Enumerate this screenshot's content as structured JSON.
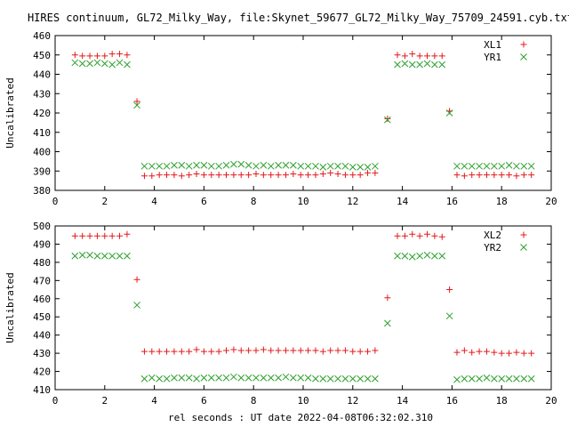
{
  "title": "HIRES continuum, GL72_Milky_Way, file:Skynet_59677_GL72_Milky_Way_75709_24591.cyb.txt",
  "xlabel": "rel seconds : UT date 2022-04-08T06:32:02.310",
  "colors": {
    "red": "#e41a1c",
    "green": "#2ca02c"
  },
  "chart_data": [
    {
      "type": "scatter",
      "ylabel": "Uncalibrated",
      "xlim": [
        0,
        20
      ],
      "ylim": [
        380,
        460
      ],
      "xticks": [
        0,
        2,
        4,
        6,
        8,
        10,
        12,
        14,
        16,
        18,
        20
      ],
      "yticks": [
        380,
        390,
        400,
        410,
        420,
        430,
        440,
        450,
        460
      ],
      "legend": "top-right",
      "series": [
        {
          "name": "XL1",
          "marker": "plus",
          "color": "#e41a1c",
          "x": [
            0.8,
            1.1,
            1.4,
            1.7,
            2.0,
            2.3,
            2.6,
            2.9,
            3.3,
            3.6,
            3.9,
            4.2,
            4.5,
            4.8,
            5.1,
            5.4,
            5.7,
            6.0,
            6.3,
            6.6,
            6.9,
            7.2,
            7.5,
            7.8,
            8.1,
            8.4,
            8.7,
            9.0,
            9.3,
            9.6,
            9.9,
            10.2,
            10.5,
            10.8,
            11.1,
            11.4,
            11.7,
            12.0,
            12.3,
            12.6,
            12.9,
            13.4,
            13.8,
            14.1,
            14.4,
            14.7,
            15.0,
            15.3,
            15.6,
            15.9,
            16.2,
            16.5,
            16.8,
            17.1,
            17.4,
            17.7,
            18.0,
            18.3,
            18.6,
            18.9,
            19.2
          ],
          "y": [
            450,
            449.5,
            449.5,
            449.5,
            449.5,
            450.5,
            450.5,
            450,
            426,
            387.5,
            387.5,
            388,
            388,
            388,
            387.5,
            388,
            388.5,
            388,
            388,
            388,
            388,
            388,
            388,
            388,
            388.5,
            388,
            388,
            388,
            388,
            388.5,
            388,
            388,
            388,
            388.5,
            389,
            388.5,
            388,
            388,
            388,
            389,
            389,
            417,
            450,
            449.5,
            450.5,
            449.5,
            449.5,
            449.5,
            449.5,
            421,
            388,
            387.5,
            388,
            388,
            388,
            388,
            388,
            388,
            387.5,
            388,
            388
          ]
        },
        {
          "name": "YR1",
          "marker": "cross",
          "color": "#2ca02c",
          "x": [
            0.8,
            1.1,
            1.4,
            1.7,
            2.0,
            2.3,
            2.6,
            2.9,
            3.3,
            3.6,
            3.9,
            4.2,
            4.5,
            4.8,
            5.1,
            5.4,
            5.7,
            6.0,
            6.3,
            6.6,
            6.9,
            7.2,
            7.5,
            7.8,
            8.1,
            8.4,
            8.7,
            9.0,
            9.3,
            9.6,
            9.9,
            10.2,
            10.5,
            10.8,
            11.1,
            11.4,
            11.7,
            12.0,
            12.3,
            12.6,
            12.9,
            13.4,
            13.8,
            14.1,
            14.4,
            14.7,
            15.0,
            15.3,
            15.6,
            15.9,
            16.2,
            16.5,
            16.8,
            17.1,
            17.4,
            17.7,
            18.0,
            18.3,
            18.6,
            18.9,
            19.2
          ],
          "y": [
            446,
            445.5,
            445.5,
            446,
            445.5,
            445,
            446,
            445,
            424,
            392.5,
            392.5,
            392.5,
            392.5,
            393,
            393,
            392.5,
            393,
            393,
            392.5,
            392.5,
            393,
            393.5,
            393.5,
            393,
            392.5,
            393,
            392.5,
            393,
            393,
            393,
            392.5,
            392.5,
            392.5,
            392,
            392.5,
            392.5,
            392.5,
            392,
            392,
            392,
            392.5,
            416.5,
            445,
            445.5,
            445,
            445,
            445.5,
            445,
            445,
            420,
            392.5,
            392.5,
            392.5,
            392.5,
            392.5,
            392.5,
            392.5,
            393,
            392.5,
            392.5,
            392.5
          ]
        }
      ]
    },
    {
      "type": "scatter",
      "ylabel": "Uncalibrated",
      "xlim": [
        0,
        20
      ],
      "ylim": [
        410,
        500
      ],
      "xticks": [
        0,
        2,
        4,
        6,
        8,
        10,
        12,
        14,
        16,
        18,
        20
      ],
      "yticks": [
        410,
        420,
        430,
        440,
        450,
        460,
        470,
        480,
        490,
        500
      ],
      "legend": "top-right",
      "series": [
        {
          "name": "XL2",
          "marker": "plus",
          "color": "#e41a1c",
          "x": [
            0.8,
            1.1,
            1.4,
            1.7,
            2.0,
            2.3,
            2.6,
            2.9,
            3.3,
            3.6,
            3.9,
            4.2,
            4.5,
            4.8,
            5.1,
            5.4,
            5.7,
            6.0,
            6.3,
            6.6,
            6.9,
            7.2,
            7.5,
            7.8,
            8.1,
            8.4,
            8.7,
            9.0,
            9.3,
            9.6,
            9.9,
            10.2,
            10.5,
            10.8,
            11.1,
            11.4,
            11.7,
            12.0,
            12.3,
            12.6,
            12.9,
            13.4,
            13.8,
            14.1,
            14.4,
            14.7,
            15.0,
            15.3,
            15.6,
            15.9,
            16.2,
            16.5,
            16.8,
            17.1,
            17.4,
            17.7,
            18.0,
            18.3,
            18.6,
            18.9,
            19.2
          ],
          "y": [
            494.5,
            494.5,
            494.5,
            494.5,
            494.5,
            494.5,
            494.5,
            495.5,
            470.5,
            431,
            431,
            431,
            431,
            431,
            431,
            431,
            432,
            431,
            431,
            431,
            431.5,
            432,
            431.5,
            431.5,
            431.5,
            432,
            431.5,
            431.5,
            431.5,
            431.5,
            431.5,
            431.5,
            431.5,
            431,
            431.5,
            431.5,
            431.5,
            431,
            431,
            431,
            431.5,
            460.5,
            494.5,
            494.5,
            495.5,
            494.5,
            495.5,
            494.5,
            494,
            465,
            430.5,
            431.5,
            430.5,
            431,
            431,
            430.5,
            430,
            430,
            430.5,
            430,
            430
          ]
        },
        {
          "name": "YR2",
          "marker": "cross",
          "color": "#2ca02c",
          "x": [
            0.8,
            1.1,
            1.4,
            1.7,
            2.0,
            2.3,
            2.6,
            2.9,
            3.3,
            3.6,
            3.9,
            4.2,
            4.5,
            4.8,
            5.1,
            5.4,
            5.7,
            6.0,
            6.3,
            6.6,
            6.9,
            7.2,
            7.5,
            7.8,
            8.1,
            8.4,
            8.7,
            9.0,
            9.3,
            9.6,
            9.9,
            10.2,
            10.5,
            10.8,
            11.1,
            11.4,
            11.7,
            12.0,
            12.3,
            12.6,
            12.9,
            13.4,
            13.8,
            14.1,
            14.4,
            14.7,
            15.0,
            15.3,
            15.6,
            15.9,
            16.2,
            16.5,
            16.8,
            17.1,
            17.4,
            17.7,
            18.0,
            18.3,
            18.6,
            18.9,
            19.2
          ],
          "y": [
            483.5,
            484,
            484,
            483.5,
            483.5,
            483.5,
            483.5,
            483.5,
            456.5,
            416,
            416.5,
            416,
            416,
            416.5,
            416.5,
            416.5,
            416,
            416.5,
            416.5,
            416.5,
            416.5,
            417,
            416.5,
            416.5,
            416.5,
            416.5,
            416.5,
            416.5,
            417,
            416.5,
            416.5,
            416.5,
            416,
            416,
            416,
            416,
            416,
            416,
            416,
            416,
            416,
            446.5,
            483.5,
            483.5,
            483,
            483.5,
            484,
            483.5,
            483.5,
            450.5,
            415.5,
            416,
            416,
            416,
            416.5,
            416,
            416,
            416,
            416,
            416,
            416
          ]
        }
      ]
    }
  ]
}
